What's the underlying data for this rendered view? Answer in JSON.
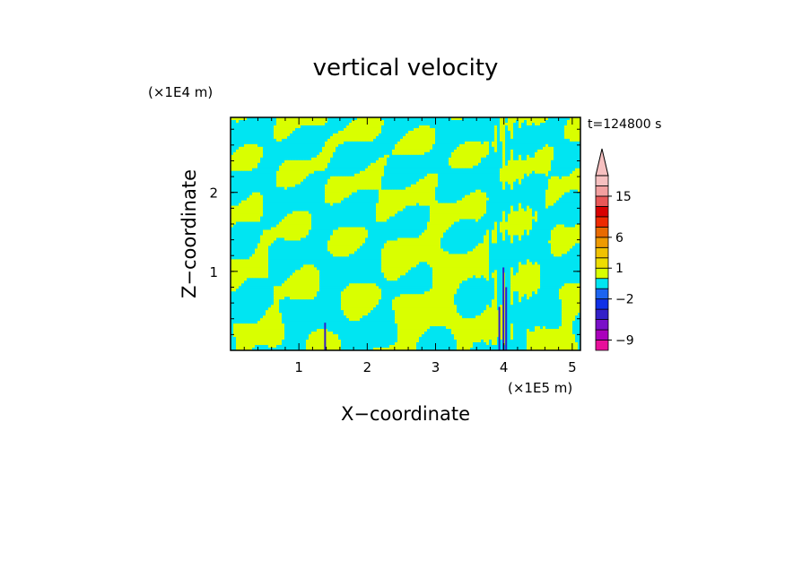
{
  "chart_data": {
    "type": "heatmap",
    "title": "vertical velocity",
    "xlabel": "X−coordinate",
    "ylabel": "Z−coordinate",
    "x_unit": "(×1E5 m)",
    "y_unit": "(×1E4 m)",
    "time_label": "t=124800 s",
    "xlim": [
      0,
      5.12
    ],
    "ylim": [
      0,
      2.95
    ],
    "x_ticks": [
      1,
      2,
      3,
      4,
      5
    ],
    "y_ticks": [
      1,
      2
    ],
    "x_tick_labels": [
      "1",
      "2",
      "3",
      "4",
      "5"
    ],
    "y_tick_labels": [
      "1",
      "2"
    ],
    "grid": false,
    "field_colors": {
      "positive": "#d9ff00",
      "negative": "#00e5f2",
      "strong_positive": "#ee9a00",
      "strong_negative": "#3320c8"
    },
    "colorbar": {
      "extend_max": true,
      "bins": [
        {
          "color": "#e8109a"
        },
        {
          "color": "#aa00bb"
        },
        {
          "color": "#7a10c8"
        },
        {
          "color": "#3320c8"
        },
        {
          "color": "#1030e6"
        },
        {
          "color": "#1c64f0"
        },
        {
          "color": "#00e5f2"
        },
        {
          "color": "#d9ff00"
        },
        {
          "color": "#eedd00"
        },
        {
          "color": "#f0c200"
        },
        {
          "color": "#ee9a00"
        },
        {
          "color": "#e86a00"
        },
        {
          "color": "#ee2a00"
        },
        {
          "color": "#d80000"
        },
        {
          "color": "#e85858"
        },
        {
          "color": "#f2a0a0"
        },
        {
          "color": "#f6c0c0"
        }
      ],
      "labels": [
        {
          "text": "15",
          "after_bin": 15
        },
        {
          "text": "6",
          "after_bin": 11
        },
        {
          "text": "1",
          "after_bin": 8
        },
        {
          "text": "−2",
          "after_bin": 5
        },
        {
          "text": "−9",
          "after_bin": 1
        }
      ]
    }
  }
}
